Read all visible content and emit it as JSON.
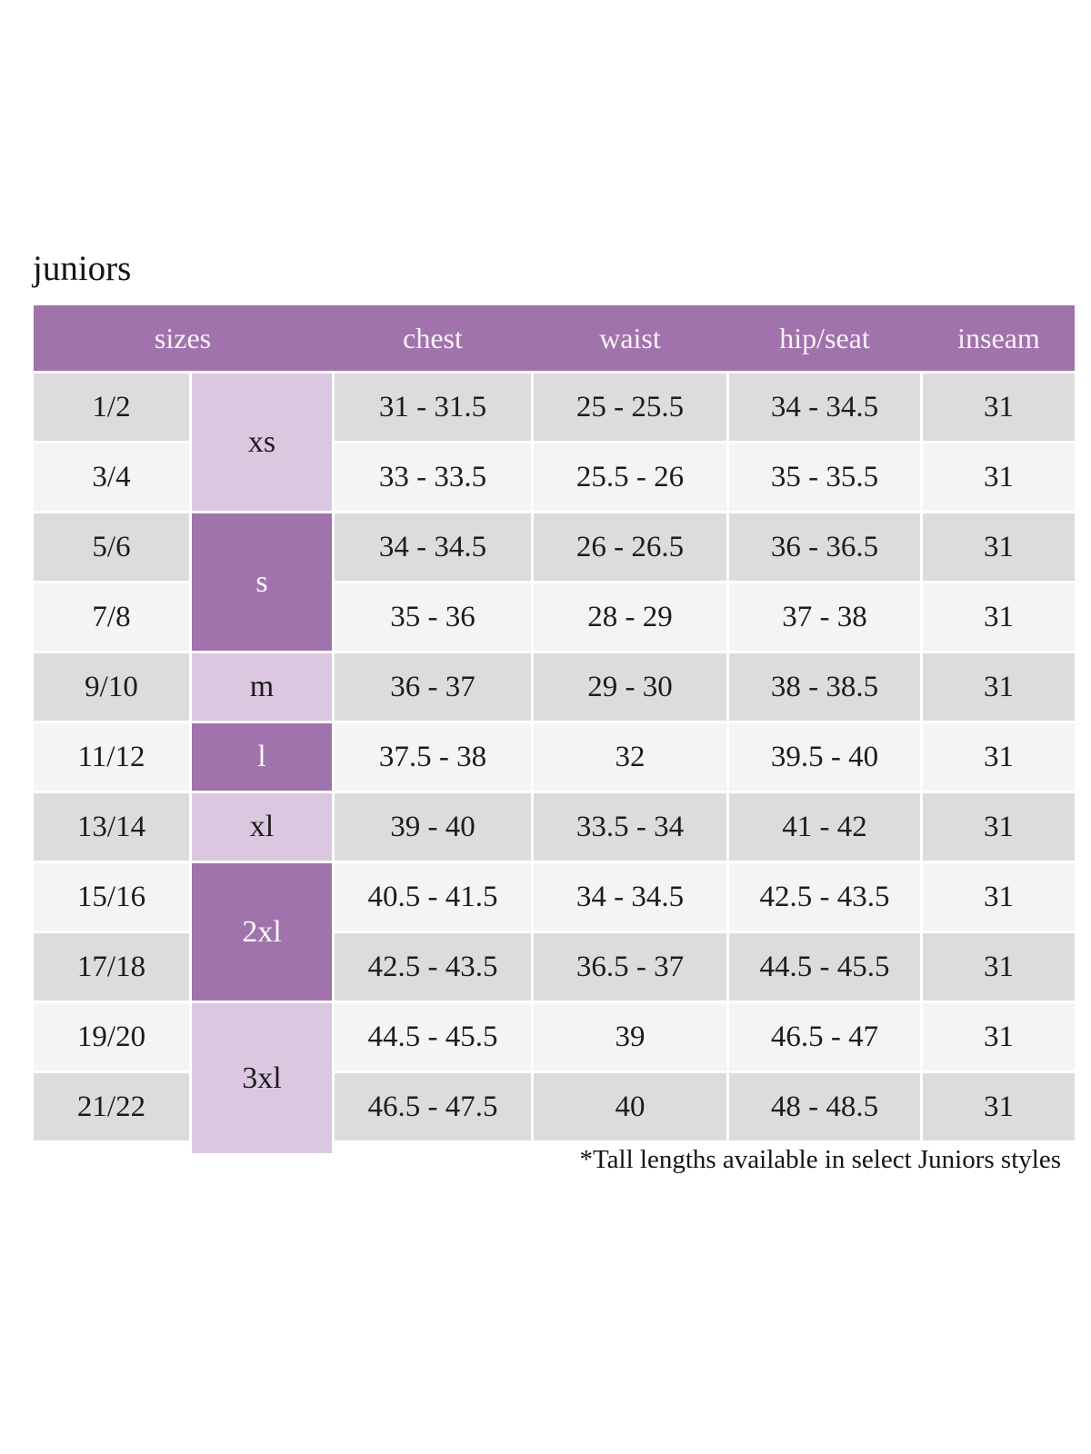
{
  "page": {
    "title": "juniors",
    "footnote": "*Tall lengths available in select Juniors styles"
  },
  "table": {
    "headers": {
      "sizes": "sizes",
      "chest": "chest",
      "waist": "waist",
      "hip_seat": "hip/seat",
      "inseam": "inseam"
    },
    "size_groups": [
      {
        "label": "xs",
        "span": 2,
        "shade": "light"
      },
      {
        "label": "s",
        "span": 2,
        "shade": "dark"
      },
      {
        "label": "m",
        "span": 1,
        "shade": "light"
      },
      {
        "label": "l",
        "span": 1,
        "shade": "dark"
      },
      {
        "label": "xl",
        "span": 1,
        "shade": "light"
      },
      {
        "label": "2xl",
        "span": 2,
        "shade": "dark"
      },
      {
        "label": "3xl",
        "span": 2,
        "shade": "light"
      }
    ],
    "rows": [
      {
        "size": "1/2",
        "chest": "31 - 31.5",
        "waist": "25 - 25.5",
        "hip_seat": "34 - 34.5",
        "inseam": "31"
      },
      {
        "size": "3/4",
        "chest": "33 - 33.5",
        "waist": "25.5 - 26",
        "hip_seat": "35 - 35.5",
        "inseam": "31"
      },
      {
        "size": "5/6",
        "chest": "34 - 34.5",
        "waist": "26 - 26.5",
        "hip_seat": "36 - 36.5",
        "inseam": "31"
      },
      {
        "size": "7/8",
        "chest": "35 - 36",
        "waist": "28 - 29",
        "hip_seat": "37 - 38",
        "inseam": "31"
      },
      {
        "size": "9/10",
        "chest": "36 - 37",
        "waist": "29 - 30",
        "hip_seat": "38 - 38.5",
        "inseam": "31"
      },
      {
        "size": "11/12",
        "chest": "37.5 - 38",
        "waist": "32",
        "hip_seat": "39.5 - 40",
        "inseam": "31"
      },
      {
        "size": "13/14",
        "chest": "39 - 40",
        "waist": "33.5 - 34",
        "hip_seat": "41 - 42",
        "inseam": "31"
      },
      {
        "size": "15/16",
        "chest": "40.5 - 41.5",
        "waist": "34 - 34.5",
        "hip_seat": "42.5 - 43.5",
        "inseam": "31"
      },
      {
        "size": "17/18",
        "chest": "42.5 - 43.5",
        "waist": "36.5 - 37",
        "hip_seat": "44.5 - 45.5",
        "inseam": "31"
      },
      {
        "size": "19/20",
        "chest": "44.5 - 45.5",
        "waist": "39",
        "hip_seat": "46.5 - 47",
        "inseam": "31"
      },
      {
        "size": "21/22",
        "chest": "46.5 - 47.5",
        "waist": "40",
        "hip_seat": "48 - 48.5",
        "inseam": "31"
      }
    ],
    "colors": {
      "header_bg": "#a173ac",
      "dark_purple": "#a173ac",
      "light_purple": "#dcc7e0",
      "row_dark": "#dcdcdc",
      "row_light": "#f4f4f3",
      "text": "#1c1c1c",
      "header_text": "#f8f2f8"
    }
  }
}
